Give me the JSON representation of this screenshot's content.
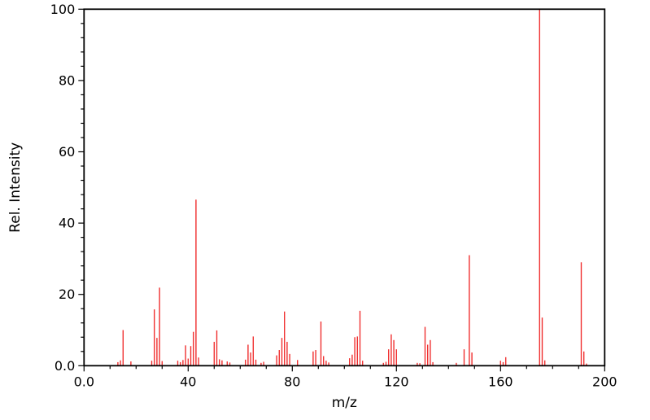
{
  "chart_data": {
    "type": "bar",
    "chart_kind": "mass-spectrum-stick-plot",
    "title": "",
    "xlabel": "m/z",
    "ylabel": "Rel. Intensity",
    "xlim": [
      0,
      200
    ],
    "ylim": [
      0,
      100
    ],
    "x_major_ticks": [
      0,
      40,
      80,
      120,
      160,
      200
    ],
    "x_major_tick_labels": [
      "0.0",
      "40",
      "80",
      "120",
      "160",
      "200"
    ],
    "x_minor_tick_step": 10,
    "y_major_ticks": [
      0,
      20,
      40,
      60,
      80,
      100
    ],
    "y_major_tick_labels": [
      "0.0",
      "20",
      "40",
      "60",
      "80",
      "100"
    ],
    "y_minor_tick_step": 4,
    "grid": false,
    "legend": null,
    "bar_color": "#f03030",
    "axis_color": "#000000",
    "background_color": "#ffffff",
    "peaks": [
      [
        13,
        1.0
      ],
      [
        14,
        1.5
      ],
      [
        15,
        10.0
      ],
      [
        18,
        1.2
      ],
      [
        26,
        1.4
      ],
      [
        27,
        15.8
      ],
      [
        28,
        7.8
      ],
      [
        29,
        21.9
      ],
      [
        30,
        1.3
      ],
      [
        36,
        1.4
      ],
      [
        37,
        1.0
      ],
      [
        38,
        1.6
      ],
      [
        39,
        5.7
      ],
      [
        40,
        2.0
      ],
      [
        41,
        5.5
      ],
      [
        42,
        9.5
      ],
      [
        43,
        46.6
      ],
      [
        44,
        2.3
      ],
      [
        50,
        6.7
      ],
      [
        51,
        9.9
      ],
      [
        52,
        1.8
      ],
      [
        53,
        1.5
      ],
      [
        55,
        1.2
      ],
      [
        56,
        0.9
      ],
      [
        62,
        1.7
      ],
      [
        63,
        5.9
      ],
      [
        64,
        3.7
      ],
      [
        65,
        8.2
      ],
      [
        66,
        1.7
      ],
      [
        68,
        0.8
      ],
      [
        69,
        1.1
      ],
      [
        74,
        2.9
      ],
      [
        75,
        4.4
      ],
      [
        76,
        7.8
      ],
      [
        77,
        15.2
      ],
      [
        78,
        6.7
      ],
      [
        79,
        3.3
      ],
      [
        82,
        1.6
      ],
      [
        88,
        4.0
      ],
      [
        89,
        4.4
      ],
      [
        91,
        12.4
      ],
      [
        92,
        2.7
      ],
      [
        93,
        1.4
      ],
      [
        94,
        0.9
      ],
      [
        102,
        2.1
      ],
      [
        103,
        3.1
      ],
      [
        104,
        8.0
      ],
      [
        105,
        8.2
      ],
      [
        106,
        15.4
      ],
      [
        107,
        1.4
      ],
      [
        115,
        0.8
      ],
      [
        116,
        1.1
      ],
      [
        117,
        4.6
      ],
      [
        118,
        8.8
      ],
      [
        119,
        7.2
      ],
      [
        120,
        4.6
      ],
      [
        128,
        0.8
      ],
      [
        129,
        0.7
      ],
      [
        131,
        10.9
      ],
      [
        132,
        5.9
      ],
      [
        133,
        7.2
      ],
      [
        134,
        1.0
      ],
      [
        143,
        0.8
      ],
      [
        146,
        4.6
      ],
      [
        148,
        31.0
      ],
      [
        149,
        3.7
      ],
      [
        160,
        1.4
      ],
      [
        161,
        1.0
      ],
      [
        162,
        2.4
      ],
      [
        175,
        100.0
      ],
      [
        176,
        13.5
      ],
      [
        177,
        1.5
      ],
      [
        191,
        29.0
      ],
      [
        192,
        4.0
      ],
      [
        193,
        0.6
      ]
    ]
  }
}
